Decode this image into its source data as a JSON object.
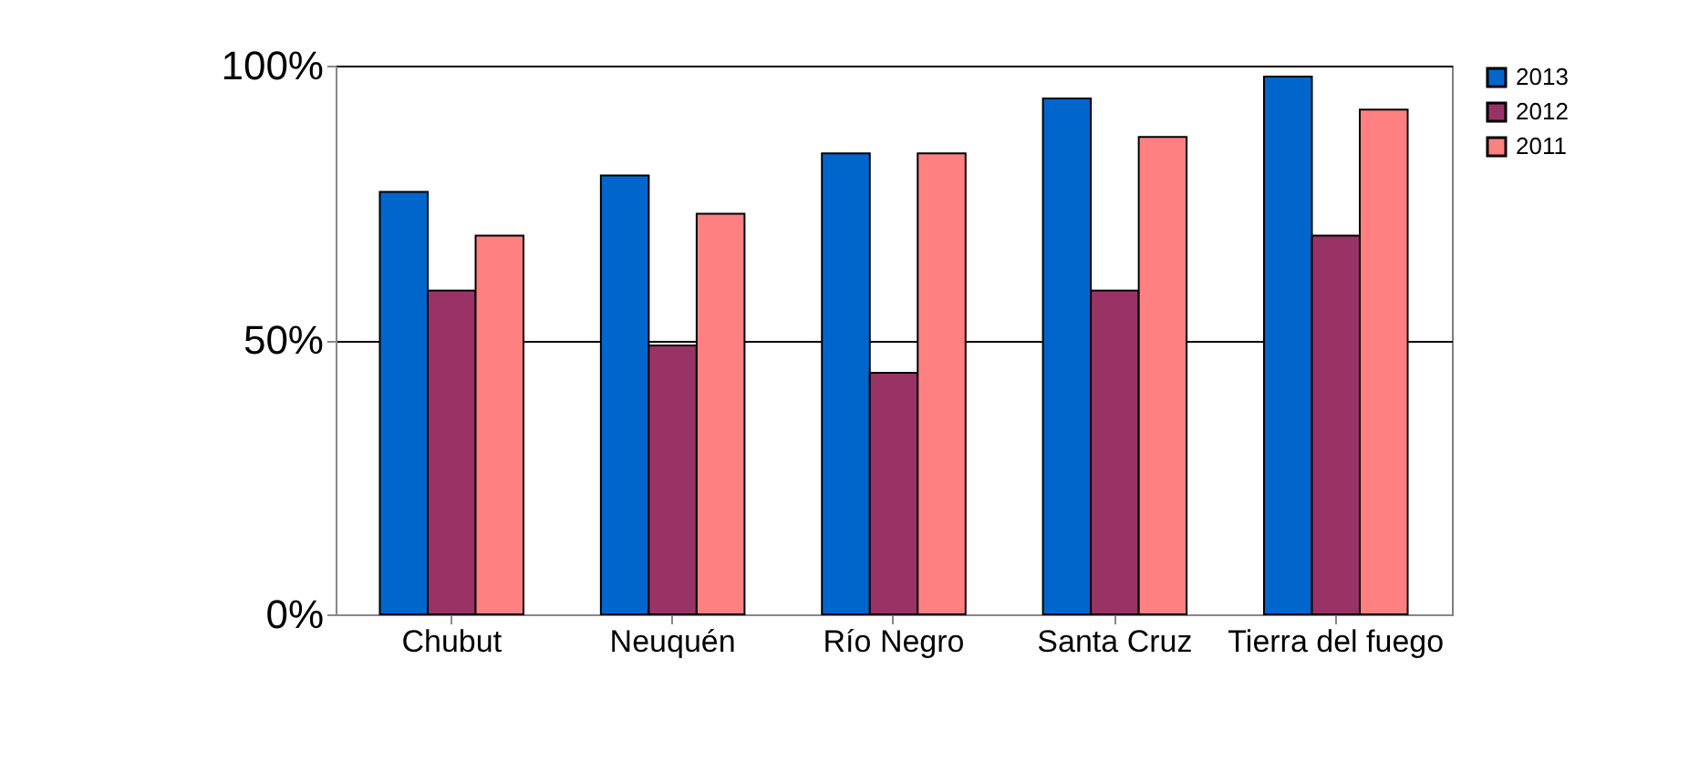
{
  "chart_data": {
    "type": "bar",
    "categories": [
      "Chubut",
      "Neuquén",
      "Río Negro",
      "Santa Cruz",
      "Tierra del fuego"
    ],
    "series": [
      {
        "name": "2013",
        "color": "#0066cc",
        "values": [
          77,
          80,
          84,
          94,
          98
        ]
      },
      {
        "name": "2012",
        "color": "#993366",
        "values": [
          59,
          49,
          44,
          59,
          69
        ]
      },
      {
        "name": "2011",
        "color": "#ff8080",
        "values": [
          69,
          73,
          84,
          87,
          92
        ]
      }
    ],
    "ylim": [
      0,
      100
    ],
    "yticks": [
      {
        "value": 0,
        "label": "0%"
      },
      {
        "value": 50,
        "label": "50%"
      },
      {
        "value": 100,
        "label": "100%"
      }
    ],
    "grid": "y",
    "legend": "right"
  }
}
